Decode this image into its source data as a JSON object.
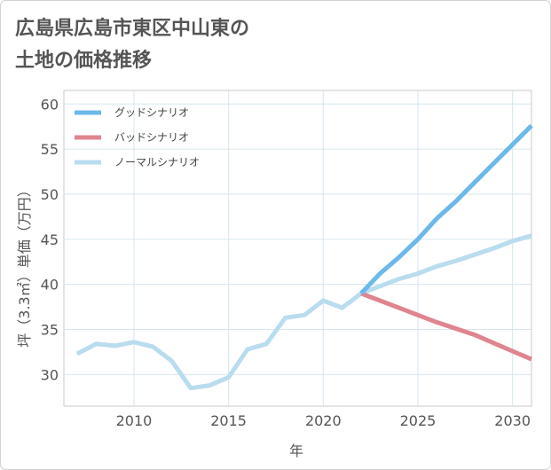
{
  "title_lines": [
    "広島県広島市東区中山東の",
    "土地の価格推移"
  ],
  "chart_data": {
    "type": "line",
    "xlabel": "年",
    "ylabel": "坪（3.3㎡）単価（万円）",
    "xlim": [
      2006.3,
      2031
    ],
    "ylim": [
      26.5,
      61.5
    ],
    "x_ticks": [
      2010,
      2015,
      2020,
      2025,
      2030
    ],
    "y_ticks": [
      30,
      35,
      40,
      45,
      50,
      55,
      60
    ],
    "grid": true,
    "legend_position": "top-left",
    "series": [
      {
        "name": "グッドシナリオ",
        "color": "#6cb8ea",
        "points": [
          [
            2022,
            39.0
          ],
          [
            2023,
            41.2
          ],
          [
            2024,
            43.0
          ],
          [
            2025,
            45.0
          ],
          [
            2026,
            47.3
          ],
          [
            2027,
            49.2
          ],
          [
            2028,
            51.3
          ],
          [
            2029,
            53.4
          ],
          [
            2030,
            55.5
          ],
          [
            2031,
            57.6
          ]
        ]
      },
      {
        "name": "バッドシナリオ",
        "color": "#de858f",
        "points": [
          [
            2022,
            39.0
          ],
          [
            2023,
            38.2
          ],
          [
            2024,
            37.4
          ],
          [
            2025,
            36.6
          ],
          [
            2026,
            35.8
          ],
          [
            2027,
            35.1
          ],
          [
            2028,
            34.4
          ],
          [
            2029,
            33.5
          ],
          [
            2030,
            32.6
          ],
          [
            2031,
            31.7
          ]
        ]
      },
      {
        "name": "ノーマルシナリオ",
        "color": "#b9dcee",
        "points": [
          [
            2007,
            32.3
          ],
          [
            2008,
            33.4
          ],
          [
            2009,
            33.2
          ],
          [
            2010,
            33.6
          ],
          [
            2011,
            33.1
          ],
          [
            2012,
            31.5
          ],
          [
            2013,
            28.5
          ],
          [
            2014,
            28.8
          ],
          [
            2015,
            29.7
          ],
          [
            2016,
            32.8
          ],
          [
            2017,
            33.4
          ],
          [
            2018,
            36.3
          ],
          [
            2019,
            36.6
          ],
          [
            2020,
            38.2
          ],
          [
            2021,
            37.4
          ],
          [
            2022,
            39.0
          ],
          [
            2023,
            39.8
          ],
          [
            2024,
            40.6
          ],
          [
            2025,
            41.2
          ],
          [
            2026,
            42.0
          ],
          [
            2027,
            42.6
          ],
          [
            2028,
            43.3
          ],
          [
            2029,
            44.0
          ],
          [
            2030,
            44.8
          ],
          [
            2031,
            45.4
          ]
        ]
      }
    ]
  }
}
